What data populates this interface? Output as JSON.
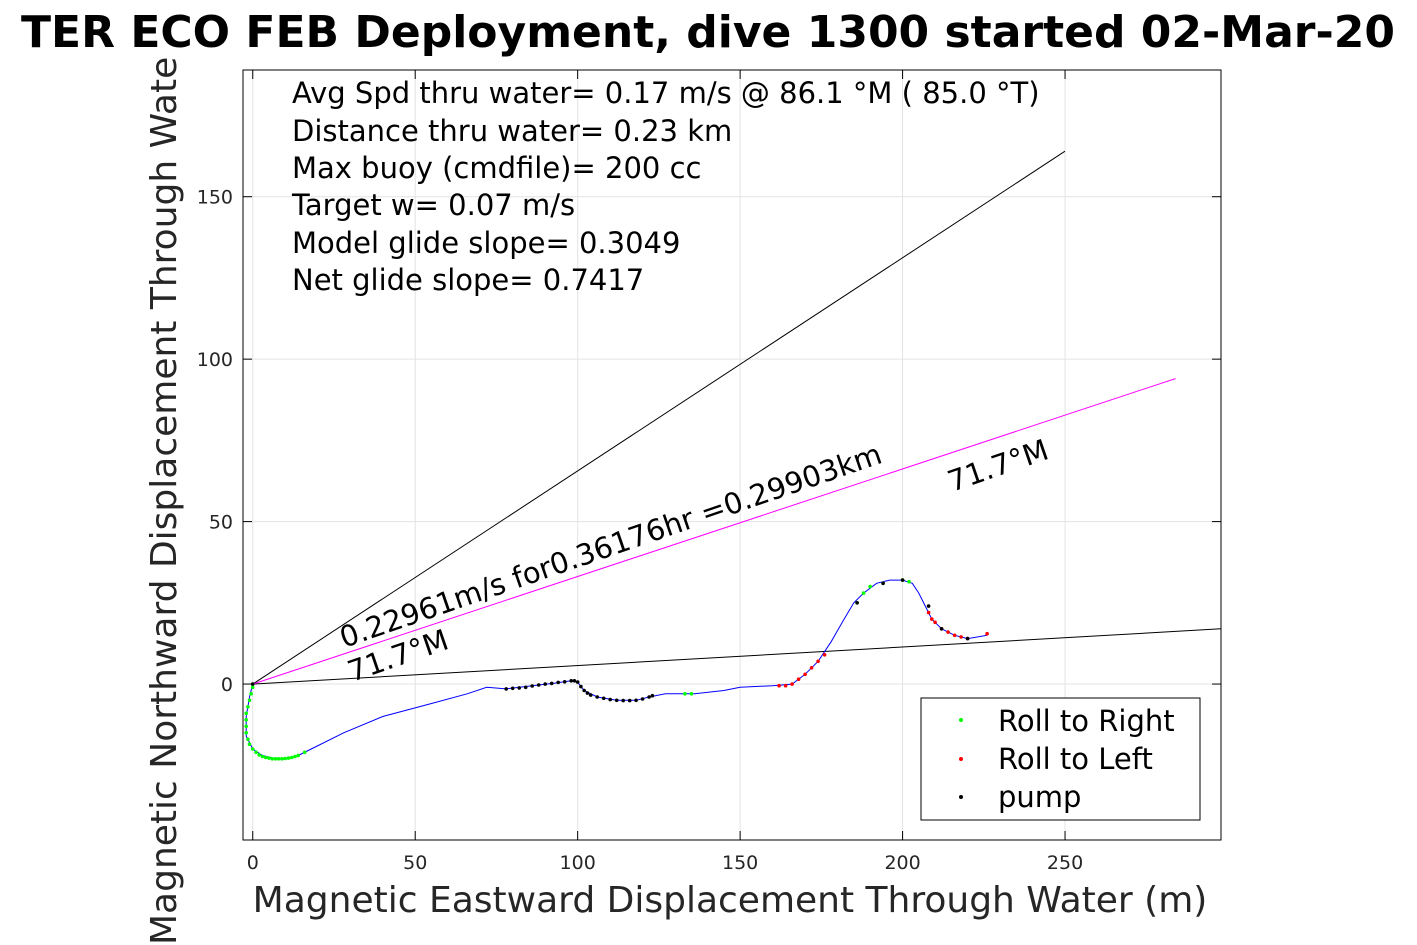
{
  "chart_data": {
    "type": "line",
    "title": "TER ECO FEB Deployment, dive 1300 started 02-Mar-20",
    "xlabel": "Magnetic Eastward Displacement Through Water (m)",
    "ylabel": "Magnetic Northward Displacement Through Wate",
    "xlim": [
      -3,
      298
    ],
    "ylim": [
      -48,
      189
    ],
    "xticks": [
      0,
      50,
      100,
      150,
      200,
      250
    ],
    "yticks": [
      0,
      50,
      100,
      150
    ],
    "grid": true,
    "annotations": [
      "Avg Spd thru water=  0.17 m/s @  86.1 °M ( 85.0 °T)",
      "Distance thru water=  0.23 km",
      "Max buoy (cmdfile)= 200 cc",
      "Target w= 0.07 m/s",
      "Model glide slope= 0.3049",
      "Net glide slope= 0.7417"
    ],
    "current_label": "0.22961m/s for0.36176hr =0.29903km",
    "heading_labels": [
      "71.7°M",
      "71.7°M"
    ],
    "reference_lines": [
      {
        "color": "#000000",
        "points": [
          [
            0,
            0
          ],
          [
            250,
            164
          ]
        ]
      },
      {
        "color": "#000000",
        "points": [
          [
            0,
            0
          ],
          [
            298,
            17
          ]
        ]
      },
      {
        "color": "#ff00ff",
        "points": [
          [
            0,
            0
          ],
          [
            284,
            94
          ]
        ]
      }
    ],
    "series": [
      {
        "name": "track",
        "color": "#0000ff",
        "points": [
          [
            0,
            0
          ],
          [
            -1,
            -4
          ],
          [
            -2,
            -10
          ],
          [
            -2,
            -16
          ],
          [
            0,
            -20
          ],
          [
            3,
            -22
          ],
          [
            7,
            -23
          ],
          [
            11,
            -23
          ],
          [
            14,
            -22
          ],
          [
            18,
            -20
          ],
          [
            28,
            -15
          ],
          [
            40,
            -10
          ],
          [
            55,
            -6
          ],
          [
            66,
            -3
          ],
          [
            72,
            -1
          ],
          [
            78,
            -1.5
          ],
          [
            86,
            -0.5
          ],
          [
            93,
            0.3
          ],
          [
            98,
            1
          ],
          [
            100,
            0.5
          ],
          [
            102,
            -2
          ],
          [
            106,
            -4
          ],
          [
            112,
            -5
          ],
          [
            118,
            -5
          ],
          [
            122,
            -4
          ],
          [
            127,
            -3
          ],
          [
            136,
            -3
          ],
          [
            145,
            -2
          ],
          [
            150,
            -1
          ],
          [
            160,
            -0.5
          ],
          [
            166,
            0
          ],
          [
            170,
            3
          ],
          [
            174,
            7
          ],
          [
            178,
            13
          ],
          [
            182,
            20
          ],
          [
            185,
            25
          ],
          [
            188,
            28
          ],
          [
            192,
            31
          ],
          [
            196,
            32
          ],
          [
            200,
            32
          ],
          [
            203,
            31
          ],
          [
            205,
            28
          ],
          [
            207,
            24
          ],
          [
            209,
            20
          ],
          [
            212,
            17
          ],
          [
            216,
            15
          ],
          [
            220,
            14
          ],
          [
            226,
            15
          ]
        ]
      },
      {
        "name": "Roll to Right",
        "color": "#00ff00",
        "points": [
          [
            0,
            -1
          ],
          [
            -0.5,
            -3
          ],
          [
            -1,
            -5
          ],
          [
            -1.5,
            -7
          ],
          [
            -2,
            -9
          ],
          [
            -2,
            -11
          ],
          [
            -2,
            -13
          ],
          [
            -2,
            -15
          ],
          [
            -1.5,
            -17
          ],
          [
            -1,
            -18.5
          ],
          [
            0,
            -20
          ],
          [
            1,
            -21
          ],
          [
            2,
            -21.8
          ],
          [
            3,
            -22.3
          ],
          [
            4,
            -22.6
          ],
          [
            5,
            -22.8
          ],
          [
            6,
            -23
          ],
          [
            7,
            -23
          ],
          [
            8,
            -23
          ],
          [
            9,
            -23
          ],
          [
            10,
            -22.9
          ],
          [
            11,
            -22.8
          ],
          [
            12,
            -22.6
          ],
          [
            13,
            -22.3
          ],
          [
            14,
            -22
          ],
          [
            16,
            -21
          ],
          [
            186,
            25
          ],
          [
            188,
            28
          ],
          [
            190,
            30
          ],
          [
            194,
            31
          ],
          [
            200,
            32
          ],
          [
            202,
            31.5
          ],
          [
            133,
            -3
          ],
          [
            135,
            -3
          ]
        ]
      },
      {
        "name": "Roll to Left",
        "color": "#ff0000",
        "points": [
          [
            162,
            -0.5
          ],
          [
            164,
            -0.5
          ],
          [
            166,
            0
          ],
          [
            168,
            1.5
          ],
          [
            170,
            3
          ],
          [
            172,
            5
          ],
          [
            174,
            7
          ],
          [
            176,
            9
          ],
          [
            208,
            22
          ],
          [
            209,
            20
          ],
          [
            210,
            19
          ],
          [
            212,
            17
          ],
          [
            214,
            16
          ],
          [
            216,
            15
          ],
          [
            218,
            14.5
          ],
          [
            220,
            14
          ],
          [
            226,
            15.5
          ]
        ]
      },
      {
        "name": "pump",
        "color": "#000000",
        "points": [
          [
            0,
            0
          ],
          [
            78,
            -1.5
          ],
          [
            80,
            -1.3
          ],
          [
            82,
            -1.2
          ],
          [
            84,
            -1
          ],
          [
            86,
            -0.6
          ],
          [
            88,
            -0.3
          ],
          [
            90,
            0
          ],
          [
            92,
            0.2
          ],
          [
            94,
            0.5
          ],
          [
            96,
            0.7
          ],
          [
            98,
            1
          ],
          [
            99,
            1
          ],
          [
            100,
            0.6
          ],
          [
            101,
            -0.8
          ],
          [
            102,
            -2
          ],
          [
            103,
            -2.8
          ],
          [
            104,
            -3.4
          ],
          [
            106,
            -4
          ],
          [
            108,
            -4.4
          ],
          [
            110,
            -4.8
          ],
          [
            112,
            -5
          ],
          [
            114,
            -5.1
          ],
          [
            116,
            -5.1
          ],
          [
            118,
            -5
          ],
          [
            120,
            -4.6
          ],
          [
            122,
            -4
          ],
          [
            123,
            -3.6
          ],
          [
            186,
            25
          ],
          [
            194,
            31
          ],
          [
            200,
            32
          ],
          [
            208,
            24
          ],
          [
            212,
            17
          ],
          [
            220,
            14
          ]
        ]
      }
    ],
    "legend": {
      "placement": "bottom-right",
      "entries": [
        {
          "label": "Roll to Right",
          "color": "#00ff00"
        },
        {
          "label": "Roll to Left",
          "color": "#ff0000"
        },
        {
          "label": "pump",
          "color": "#000000"
        }
      ]
    }
  }
}
